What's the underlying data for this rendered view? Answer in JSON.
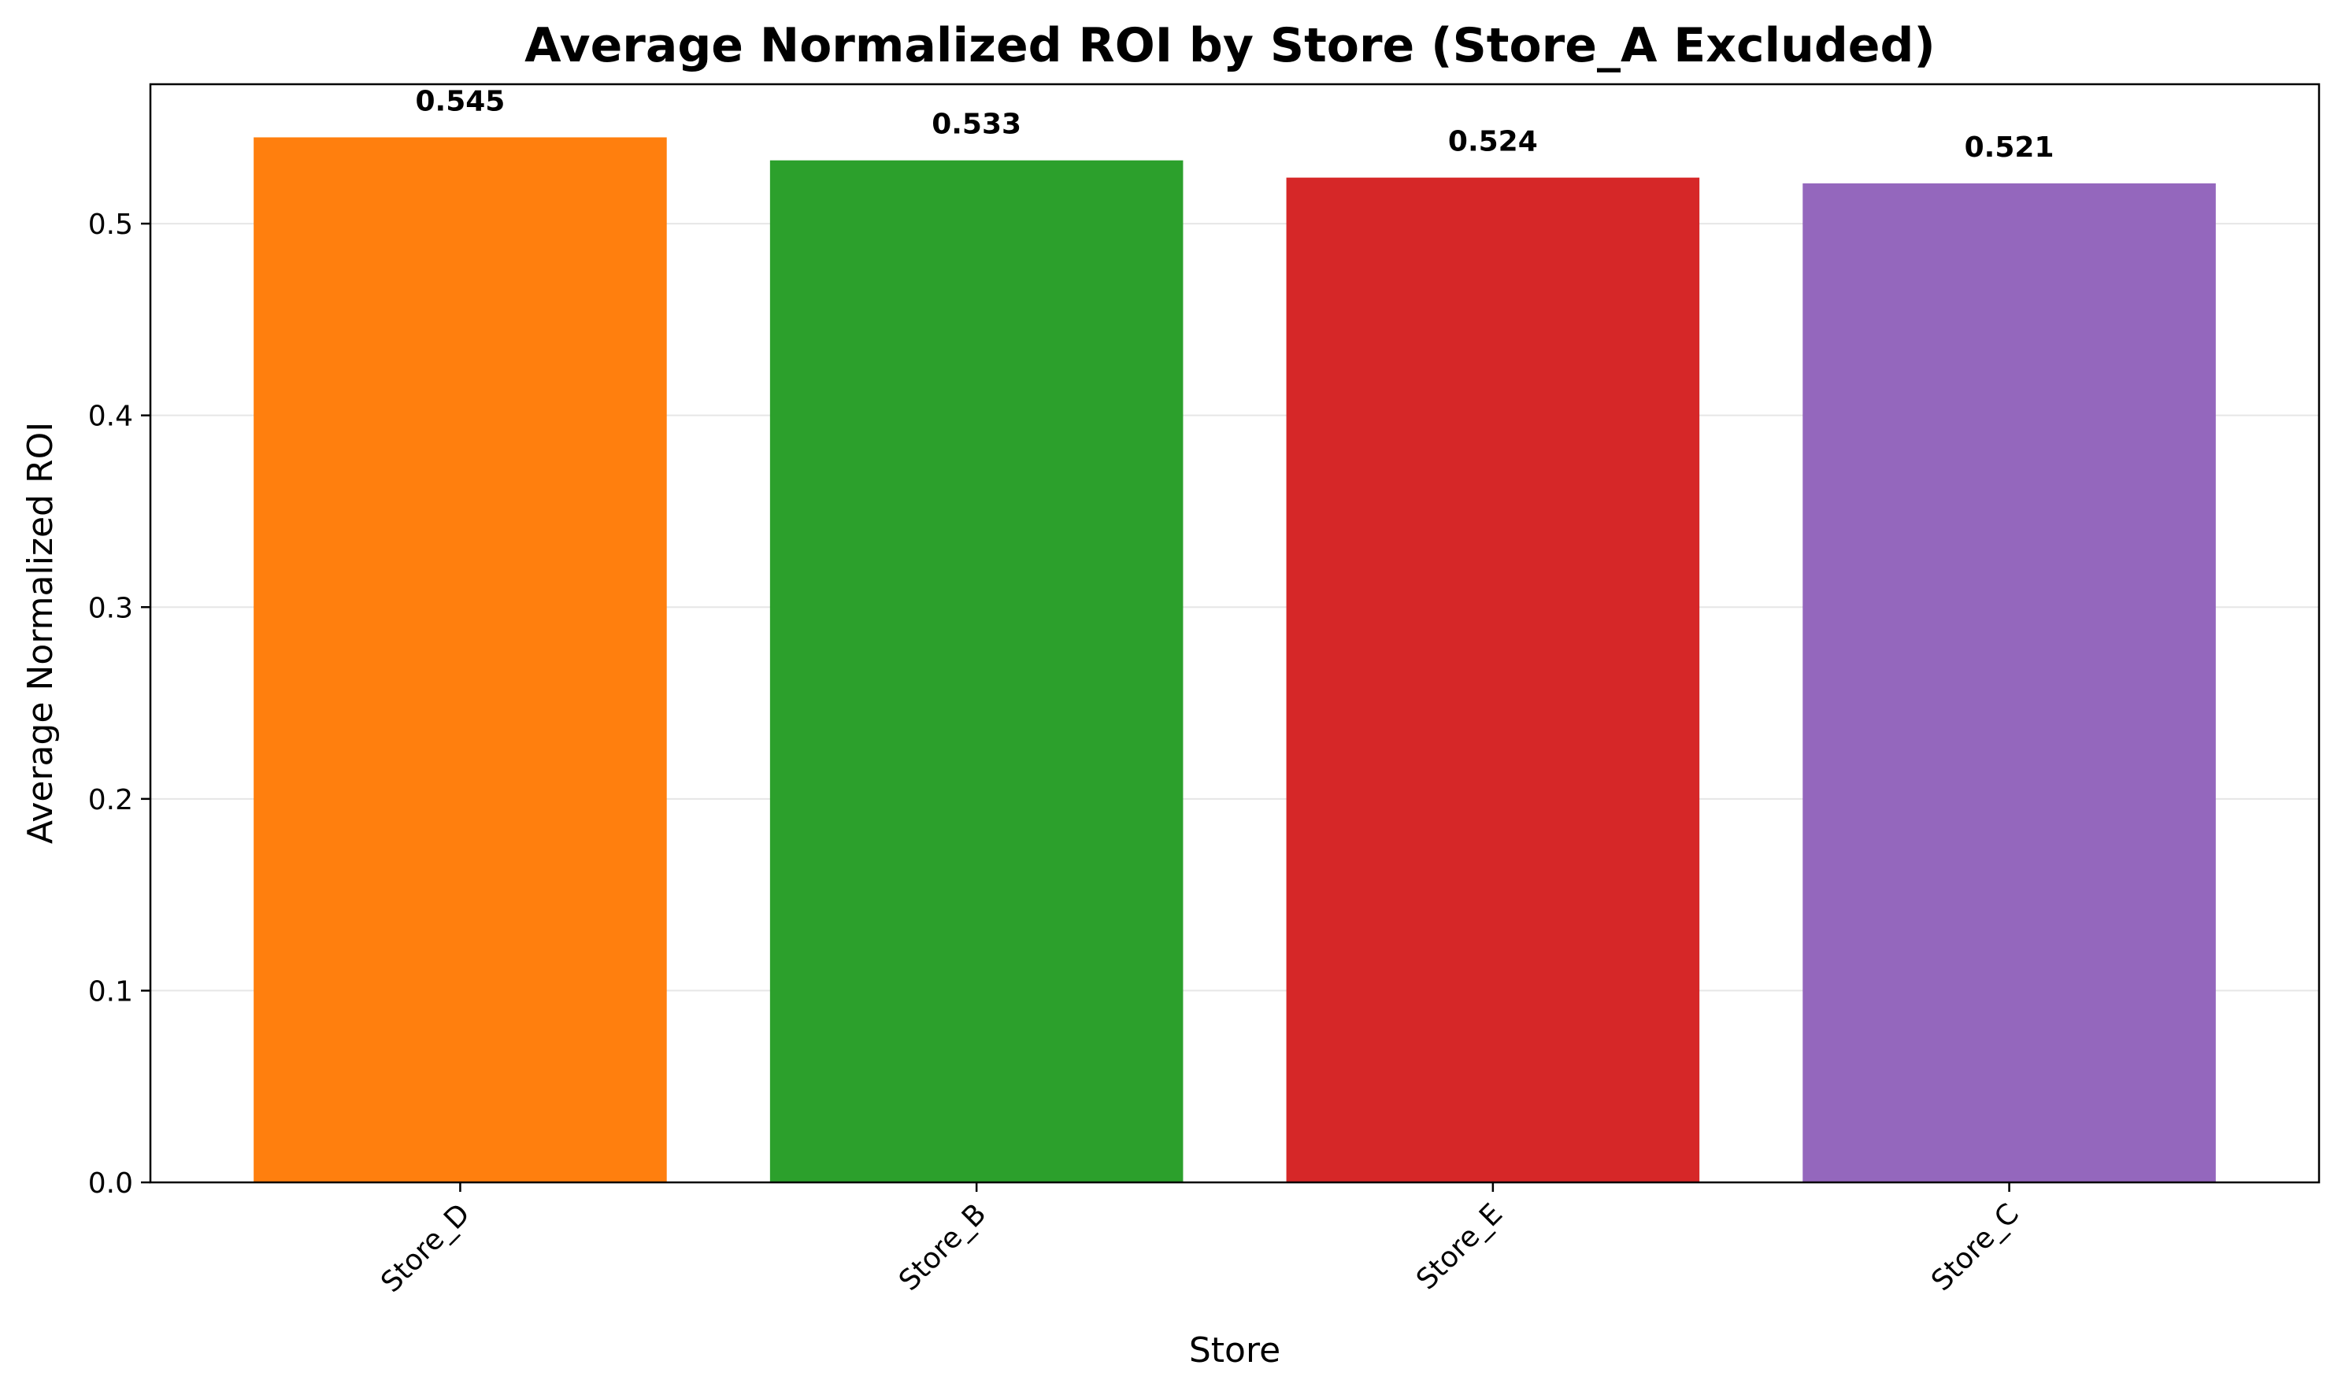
{
  "chart_data": {
    "type": "bar",
    "title": "Average Normalized ROI by Store (Store_A Excluded)",
    "xlabel": "Store",
    "ylabel": "Average Normalized ROI",
    "categories": [
      "Store_D",
      "Store_B",
      "Store_E",
      "Store_C"
    ],
    "values": [
      0.545,
      0.533,
      0.524,
      0.521
    ],
    "value_labels": [
      "0.545",
      "0.533",
      "0.524",
      "0.521"
    ],
    "colors": [
      "#ff7f0e",
      "#2ca02c",
      "#d62728",
      "#9467bd"
    ],
    "ylim": [
      0,
      0.5727
    ],
    "yticks": [
      0.0,
      0.1,
      0.2,
      0.3,
      0.4,
      0.5
    ],
    "ytick_labels": [
      "0.0",
      "0.1",
      "0.2",
      "0.3",
      "0.4",
      "0.5"
    ],
    "grid": "y-axis, light gray",
    "legend": "none"
  }
}
